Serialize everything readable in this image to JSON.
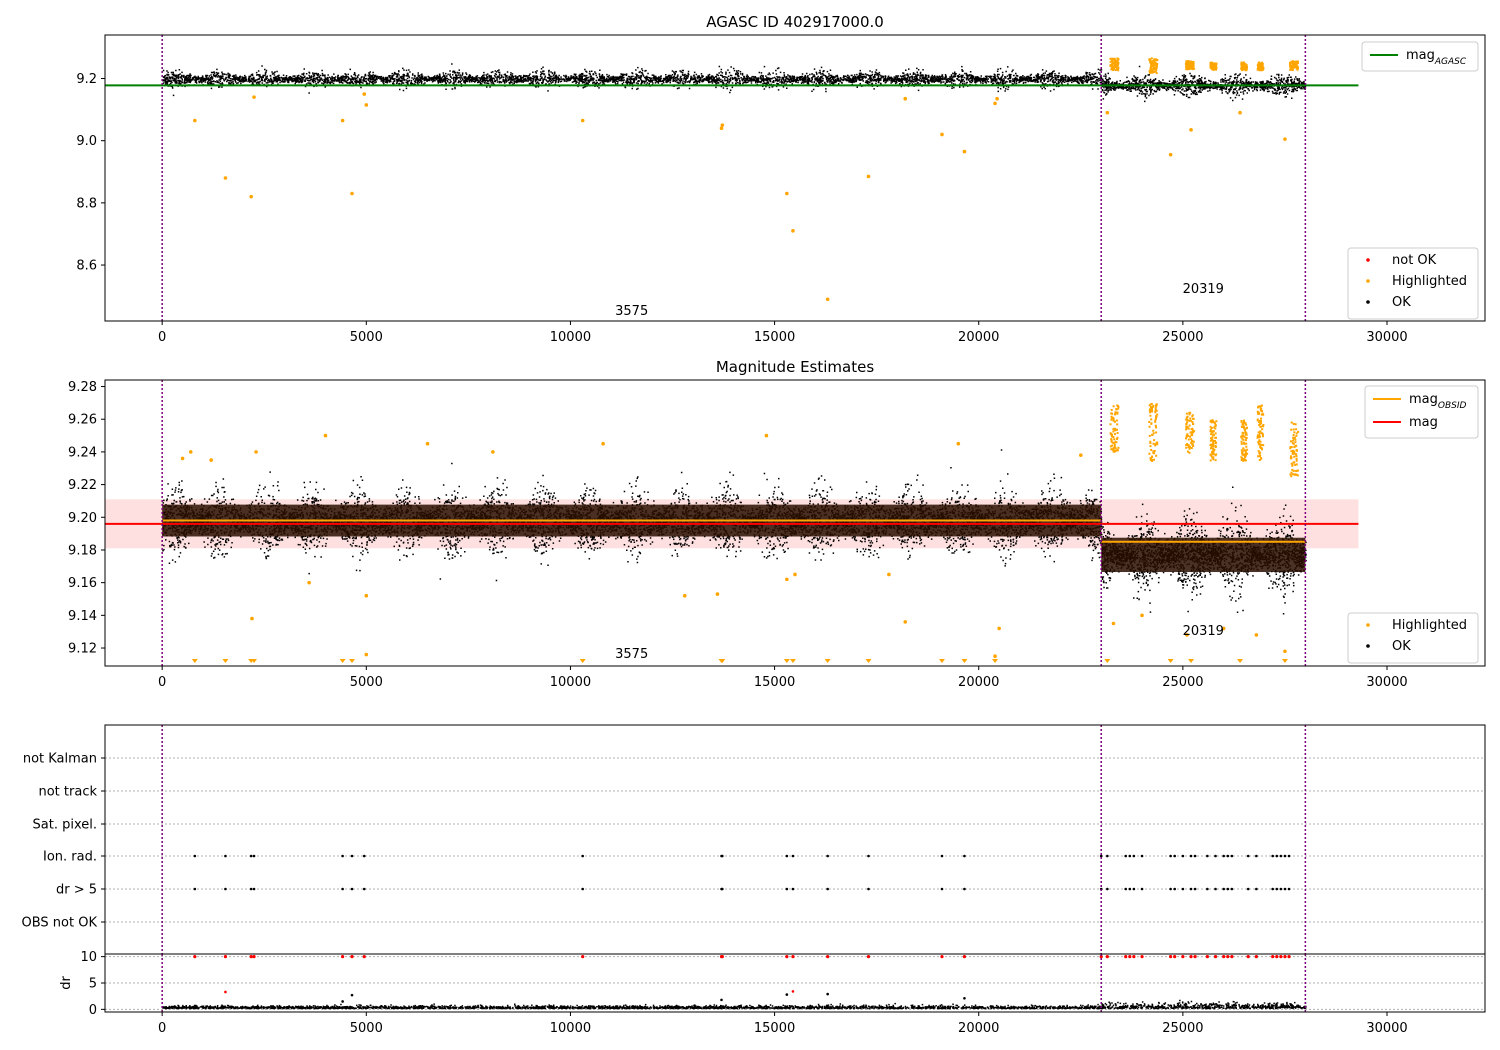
{
  "chart_data": [
    {
      "type": "scatter",
      "title": "AGASC ID 402917000.0",
      "xlim": [
        -1400,
        32400
      ],
      "ylim": [
        8.42,
        9.34
      ],
      "xticks": [
        0,
        5000,
        10000,
        15000,
        20000,
        25000,
        30000
      ],
      "xtick_labels": [
        "0",
        "5000",
        "10000",
        "15000",
        "20000",
        "25000",
        "30000"
      ],
      "yticks": [
        8.6,
        8.8,
        9.0,
        9.2
      ],
      "ytick_labels": [
        "8.6",
        "8.8",
        "9.0",
        "9.2"
      ],
      "vlines": [
        0,
        23000,
        28000
      ],
      "obsid_labels": [
        {
          "text": "3575",
          "x": 11500,
          "y": 8.44
        },
        {
          "text": "20319",
          "x": 25500,
          "y": 8.51
        }
      ],
      "lines": [
        {
          "name": "mag",
          "sub": "AGASC",
          "color": "#008000",
          "segments": [
            [
              -1400,
              29300,
              9.178
            ]
          ]
        }
      ],
      "clusters": [
        {
          "series": "OK",
          "x_range": [
            0,
            23000
          ],
          "y_center": 9.2,
          "y_spread": 0.018
        },
        {
          "series": "OK",
          "x_range": [
            23000,
            28000
          ],
          "y_center": 9.18,
          "y_spread": 0.022
        }
      ],
      "highlighted_points": [
        [
          800,
          9.065
        ],
        [
          1550,
          8.88
        ],
        [
          2180,
          8.82
        ],
        [
          2250,
          9.14
        ],
        [
          4420,
          9.065
        ],
        [
          4650,
          8.83
        ],
        [
          4950,
          9.15
        ],
        [
          5000,
          9.115
        ],
        [
          10300,
          9.065
        ],
        [
          13700,
          9.04
        ],
        [
          13720,
          9.05
        ],
        [
          15300,
          8.83
        ],
        [
          15450,
          8.71
        ],
        [
          16300,
          8.49
        ],
        [
          17300,
          8.885
        ],
        [
          18200,
          9.135
        ],
        [
          19100,
          9.02
        ],
        [
          19650,
          8.965
        ],
        [
          20400,
          9.12
        ],
        [
          20450,
          9.135
        ],
        [
          23150,
          9.09
        ],
        [
          24700,
          8.955
        ],
        [
          25200,
          9.035
        ],
        [
          26400,
          9.09
        ],
        [
          27500,
          9.005
        ]
      ],
      "highlighted_bands": [
        {
          "x_range": [
            23200,
            23400
          ],
          "y_range": [
            9.23,
            9.27
          ]
        },
        {
          "x_range": [
            24150,
            24350
          ],
          "y_range": [
            9.22,
            9.27
          ]
        },
        {
          "x_range": [
            25050,
            25250
          ],
          "y_range": [
            9.23,
            9.26
          ]
        },
        {
          "x_range": [
            25650,
            25800
          ],
          "y_range": [
            9.23,
            9.255
          ]
        },
        {
          "x_range": [
            26400,
            26550
          ],
          "y_range": [
            9.23,
            9.255
          ]
        },
        {
          "x_range": [
            26800,
            26950
          ],
          "y_range": [
            9.23,
            9.255
          ]
        },
        {
          "x_range": [
            27600,
            27800
          ],
          "y_range": [
            9.23,
            9.26
          ]
        }
      ],
      "legend": {
        "placement": "top-right",
        "entries": [
          {
            "label": "mag",
            "sub": "AGASC",
            "color": "#008000"
          }
        ]
      },
      "legend2": {
        "placement": "bottom-right",
        "entries": [
          {
            "label": "not OK",
            "color": "#ff0000"
          },
          {
            "label": "Highlighted",
            "color": "#ffa500"
          },
          {
            "label": "OK",
            "color": "#000000"
          }
        ]
      }
    },
    {
      "type": "scatter",
      "title": "Magnitude Estimates",
      "xlim": [
        -1400,
        32400
      ],
      "ylim": [
        9.109,
        9.284
      ],
      "xticks": [
        0,
        5000,
        10000,
        15000,
        20000,
        25000,
        30000
      ],
      "xtick_labels": [
        "0",
        "5000",
        "10000",
        "15000",
        "20000",
        "25000",
        "30000"
      ],
      "yticks": [
        9.12,
        9.14,
        9.16,
        9.18,
        9.2,
        9.22,
        9.24,
        9.26,
        9.28
      ],
      "ytick_labels": [
        "9.12",
        "9.14",
        "9.16",
        "9.18",
        "9.20",
        "9.22",
        "9.24",
        "9.26",
        "9.28"
      ],
      "vlines": [
        0,
        23000,
        28000
      ],
      "obsid_labels": [
        {
          "text": "3575",
          "x": 11500,
          "y": 9.114
        },
        {
          "text": "20319",
          "x": 25500,
          "y": 9.128
        }
      ],
      "band": {
        "x_range": [
          -1400,
          29300
        ],
        "y_range": [
          9.181,
          9.211
        ],
        "color": "#ff0000",
        "alpha": 0.12
      },
      "lines": [
        {
          "name": "mag",
          "sub": "OBSID",
          "color": "#ffa500",
          "segments": [
            [
              0,
              23000,
              9.198
            ],
            [
              23000,
              28000,
              9.185
            ]
          ]
        },
        {
          "name": "mag",
          "sub": "",
          "color": "#ff0000",
          "segments": [
            [
              -1400,
              29300,
              9.196
            ]
          ]
        }
      ],
      "clusters": [
        {
          "series": "OK",
          "x_range": [
            0,
            23000
          ],
          "y_center": 9.198,
          "y_spread": 0.013
        },
        {
          "series": "OK",
          "x_range": [
            23000,
            28000
          ],
          "y_center": 9.177,
          "y_spread": 0.014
        }
      ],
      "highlighted_points": [
        [
          500,
          9.236
        ],
        [
          700,
          9.24
        ],
        [
          1200,
          9.235
        ],
        [
          2200,
          9.138
        ],
        [
          2300,
          9.24
        ],
        [
          3600,
          9.16
        ],
        [
          4000,
          9.25
        ],
        [
          5000,
          9.152
        ],
        [
          5000,
          9.116
        ],
        [
          6500,
          9.245
        ],
        [
          8100,
          9.24
        ],
        [
          10800,
          9.245
        ],
        [
          12800,
          9.152
        ],
        [
          13600,
          9.153
        ],
        [
          14800,
          9.25
        ],
        [
          15300,
          9.162
        ],
        [
          15500,
          9.165
        ],
        [
          17800,
          9.165
        ],
        [
          18200,
          9.136
        ],
        [
          19500,
          9.245
        ],
        [
          20500,
          9.132
        ],
        [
          20400,
          9.115
        ],
        [
          22500,
          9.238
        ],
        [
          23300,
          9.135
        ],
        [
          24000,
          9.14
        ],
        [
          25100,
          9.128
        ],
        [
          26000,
          9.132
        ],
        [
          26800,
          9.128
        ],
        [
          27500,
          9.118
        ]
      ],
      "highlighted_bands": [
        {
          "x_range": [
            23200,
            23400
          ],
          "y_range": [
            9.24,
            9.27
          ]
        },
        {
          "x_range": [
            24150,
            24350
          ],
          "y_range": [
            9.235,
            9.27
          ]
        },
        {
          "x_range": [
            25050,
            25250
          ],
          "y_range": [
            9.24,
            9.265
          ]
        },
        {
          "x_range": [
            25650,
            25800
          ],
          "y_range": [
            9.235,
            9.26
          ]
        },
        {
          "x_range": [
            26400,
            26550
          ],
          "y_range": [
            9.235,
            9.26
          ]
        },
        {
          "x_range": [
            26800,
            26950
          ],
          "y_range": [
            9.235,
            9.27
          ]
        },
        {
          "x_range": [
            27600,
            27800
          ],
          "y_range": [
            9.225,
            9.26
          ]
        }
      ],
      "clipped_markers_x": [
        800,
        1550,
        2180,
        2250,
        4420,
        4650,
        10300,
        13700,
        13720,
        15300,
        15450,
        16300,
        17300,
        19100,
        19650,
        20400,
        23150,
        24700,
        25200,
        26400,
        27500
      ],
      "legend": {
        "placement": "top-right",
        "entries": [
          {
            "label": "mag",
            "sub": "OBSID",
            "color": "#ffa500"
          },
          {
            "label": "mag",
            "sub": "",
            "color": "#ff0000"
          }
        ]
      },
      "legend2": {
        "placement": "bottom-right",
        "entries": [
          {
            "label": "Highlighted",
            "color": "#ffa500"
          },
          {
            "label": "OK",
            "color": "#000000"
          }
        ]
      }
    },
    {
      "type": "scatter",
      "title": "",
      "xlim": [
        -1400,
        32400
      ],
      "categories": [
        "not Kalman",
        "not track",
        "Sat. pixel.",
        "Ion. rad.",
        "dr > 5",
        "OBS not OK"
      ],
      "vlines": [
        0,
        23000,
        28000
      ],
      "flag_points": {
        "Ion. rad.": [
          800,
          1550,
          2180,
          2250,
          4420,
          4650,
          4950,
          10300,
          13700,
          13720,
          15300,
          15450,
          16300,
          17300,
          19100,
          19650,
          23000,
          23150,
          23600,
          23700,
          23800,
          24000,
          24700,
          24800,
          25000,
          25200,
          25300,
          25600,
          25800,
          26000,
          26100,
          26200,
          26600,
          26800,
          27200,
          27300,
          27400,
          27500,
          27600
        ],
        "dr > 5": [
          800,
          1550,
          2180,
          2250,
          4420,
          4650,
          4950,
          10300,
          13700,
          13720,
          15300,
          15450,
          16300,
          17300,
          19100,
          19650,
          23000,
          23150,
          23600,
          23700,
          23800,
          24000,
          24700,
          24800,
          25000,
          25200,
          25300,
          25600,
          25800,
          26000,
          26100,
          26200,
          26600,
          26800,
          27200,
          27300,
          27400,
          27500,
          27600
        ]
      }
    },
    {
      "type": "scatter",
      "title": "",
      "ylabel": "dr",
      "xlim": [
        -1400,
        32400
      ],
      "ylim": [
        -0.5,
        10.5
      ],
      "xticks": [
        0,
        5000,
        10000,
        15000,
        20000,
        25000,
        30000
      ],
      "xtick_labels": [
        "0",
        "5000",
        "10000",
        "15000",
        "20000",
        "25000",
        "30000"
      ],
      "yticks": [
        0,
        5,
        10
      ],
      "ytick_labels": [
        "0",
        "5",
        "10"
      ],
      "vlines": [
        0,
        23000,
        28000
      ],
      "clipped_points_x": [
        800,
        1550,
        2180,
        2250,
        4420,
        4650,
        4950,
        10300,
        13700,
        13720,
        15300,
        15450,
        16300,
        17300,
        19100,
        19650,
        23000,
        23150,
        23600,
        23700,
        23800,
        24000,
        24700,
        24800,
        25000,
        25200,
        25300,
        25600,
        25800,
        26000,
        26100,
        26200,
        26600,
        26800,
        27200,
        27300,
        27400,
        27500,
        27600
      ],
      "outlier_points": [
        [
          1550,
          3.3
        ],
        [
          4420,
          1.5
        ],
        [
          4650,
          2.7
        ],
        [
          13700,
          1.8
        ],
        [
          15300,
          2.8
        ],
        [
          15450,
          3.4
        ],
        [
          16300,
          2.9
        ],
        [
          19650,
          2.1
        ]
      ],
      "baseline": {
        "x_range": [
          0,
          28000
        ],
        "y_center": 0.3,
        "y_spread": 0.35
      }
    }
  ]
}
